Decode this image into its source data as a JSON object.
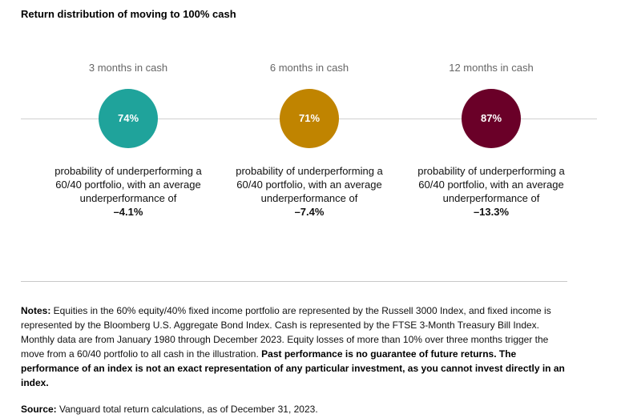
{
  "chart_data": {
    "type": "bubble-comparison",
    "title": "Return distribution of moving to 100% cash",
    "items": [
      {
        "label": "3 months in cash",
        "probability": "74%",
        "value": 74,
        "color": "#1fa39b",
        "description": "probability of underperforming a 60/40 portfolio, with an average underperformance of",
        "avg_underperformance": "–4.1%"
      },
      {
        "label": "6 months in cash",
        "probability": "71%",
        "value": 71,
        "color": "#c08400",
        "description": "probability of underperforming a 60/40 portfolio, with an average underperformance of",
        "avg_underperformance": "–7.4%"
      },
      {
        "label": "12 months in cash",
        "probability": "87%",
        "value": 87,
        "color": "#6a0028",
        "description": "probability of underperforming a 60/40 portfolio, with an average underperformance of",
        "avg_underperformance": "–13.3%"
      }
    ]
  },
  "notes": {
    "label": "Notes:",
    "text": " Equities in the 60% equity/40% fixed income portfolio are represented by the Russell 3000 Index, and fixed income is represented by the Bloomberg U.S. Aggregate Bond Index. Cash is represented by the FTSE 3-Month Treasury Bill Index. Monthly data are from January 1980 through December 2023. Equity losses of more than 10% over three months trigger the move from a 60/40 portfolio to all cash in the illustration. ",
    "disclaimer": "Past performance is no guarantee of future returns. The performance of an index is not an exact representation of any particular investment, as you cannot invest directly in an index."
  },
  "source": {
    "label": "Source:",
    "text": " Vanguard total return calculations, as of December 31, 2023."
  }
}
